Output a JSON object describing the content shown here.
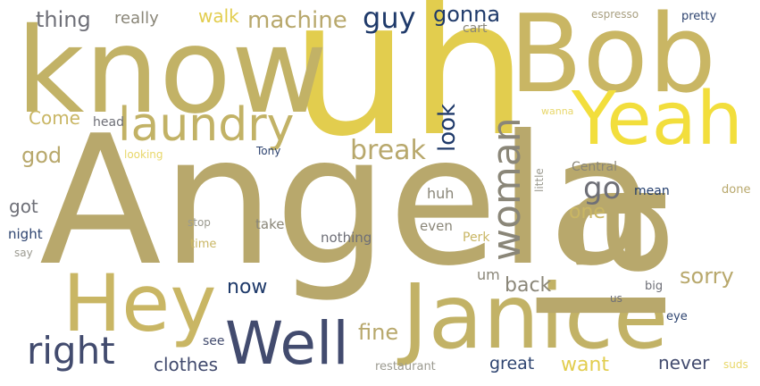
{
  "palette": {
    "khaki": "#b8a86c",
    "olive": "#c2b266",
    "gold": "#e2cd4e",
    "yellow": "#f2de3c",
    "light_gold": "#e8d76a",
    "navy": "#2e4470",
    "slate": "#424b6e",
    "dark_blue": "#1f3a6a",
    "gray": "#6e6f77",
    "light_gray": "#9b9a90"
  },
  "words": [
    {
      "text": "Angela",
      "color": "#b8a86c"
    },
    {
      "text": "uh",
      "color": "#e2cd4e"
    },
    {
      "text": "know",
      "color": "#c2b266"
    },
    {
      "text": "Bob",
      "color": "#c9b664"
    },
    {
      "text": "Janice",
      "color": "#c2b266"
    },
    {
      "text": "Yeah",
      "color": "#f2de3c"
    },
    {
      "text": "Hey",
      "color": "#c9b664"
    },
    {
      "text": "Well",
      "color": "#424b6e"
    },
    {
      "text": "laundry",
      "color": "#c2b266"
    },
    {
      "text": "right",
      "color": "#424b6e"
    },
    {
      "text": "woman",
      "color": "#8a8678"
    },
    {
      "text": "la",
      "color": "#b8a86c"
    },
    {
      "text": "break",
      "color": "#b8a86c"
    },
    {
      "text": "go",
      "color": "#6e6f77"
    },
    {
      "text": "machine",
      "color": "#b8a86c"
    },
    {
      "text": "guy",
      "color": "#1f3a6a"
    },
    {
      "text": "look",
      "color": "#1f3a6a"
    },
    {
      "text": "thing",
      "color": "#6e6f77"
    },
    {
      "text": "gonna",
      "color": "#1f3a6a"
    },
    {
      "text": "walk",
      "color": "#e2cd4e"
    },
    {
      "text": "really",
      "color": "#8a8678"
    },
    {
      "text": "cart",
      "color": "#8a8678"
    },
    {
      "text": "espresso",
      "color": "#a89f80"
    },
    {
      "text": "pretty",
      "color": "#2e4470"
    },
    {
      "text": "Come",
      "color": "#c9b664"
    },
    {
      "text": "head",
      "color": "#6e6f77"
    },
    {
      "text": "god",
      "color": "#b8a86c"
    },
    {
      "text": "Tony",
      "color": "#2e4470"
    },
    {
      "text": "looking",
      "color": "#e8d76a"
    },
    {
      "text": "wanna",
      "color": "#e8d76a"
    },
    {
      "text": "little",
      "color": "#9b9a90"
    },
    {
      "text": "Central",
      "color": "#8a8678"
    },
    {
      "text": "mean",
      "color": "#1f3a6a"
    },
    {
      "text": "done",
      "color": "#b8a86c"
    },
    {
      "text": "one",
      "color": "#c9b664"
    },
    {
      "text": "huh",
      "color": "#8a8678"
    },
    {
      "text": "got",
      "color": "#6e6f77"
    },
    {
      "text": "stop",
      "color": "#9b9a90"
    },
    {
      "text": "take",
      "color": "#8a8678"
    },
    {
      "text": "even",
      "color": "#8a8678"
    },
    {
      "text": "night",
      "color": "#2e4470"
    },
    {
      "text": "time",
      "color": "#c9b664"
    },
    {
      "text": "nothing",
      "color": "#6e6f77"
    },
    {
      "text": "Perk",
      "color": "#c9b664"
    },
    {
      "text": "say",
      "color": "#9b9a90"
    },
    {
      "text": "now",
      "color": "#1f3a6a"
    },
    {
      "text": "um",
      "color": "#8a8678"
    },
    {
      "text": "back",
      "color": "#8a8678"
    },
    {
      "text": "sorry",
      "color": "#b8a86c"
    },
    {
      "text": "us",
      "color": "#6e6f77"
    },
    {
      "text": "big",
      "color": "#6e6f77"
    },
    {
      "text": "fine",
      "color": "#b8a86c"
    },
    {
      "text": "eye",
      "color": "#2e4470"
    },
    {
      "text": "see",
      "color": "#424b6e"
    },
    {
      "text": "clothes",
      "color": "#424b6e"
    },
    {
      "text": "great",
      "color": "#2e4470"
    },
    {
      "text": "want",
      "color": "#e2cd4e"
    },
    {
      "text": "never",
      "color": "#424b6e"
    },
    {
      "text": "suds",
      "color": "#e8d76a"
    },
    {
      "text": "restaurant",
      "color": "#9b9a90"
    }
  ]
}
